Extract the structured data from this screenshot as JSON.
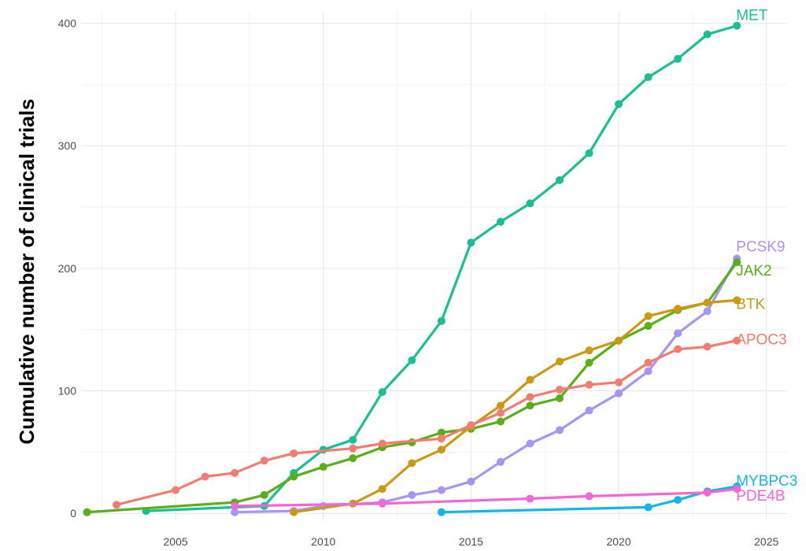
{
  "chart_data": {
    "type": "line",
    "title": "",
    "xlabel": "",
    "ylabel": "Cumulative number of clinical trials",
    "xlim": [
      2001.8,
      2025.7
    ],
    "ylim": [
      -5,
      410
    ],
    "x_ticks": [
      2005,
      2010,
      2015,
      2020,
      2025
    ],
    "y_ticks": [
      0,
      100,
      200,
      300,
      400
    ],
    "grid": true,
    "legend": "direct labels at line ends",
    "series": [
      {
        "name": "MET",
        "color": "#1ABF94",
        "x": [
          2004,
          2008,
          2009,
          2010,
          2011,
          2012,
          2013,
          2014,
          2015,
          2016,
          2017,
          2018,
          2019,
          2020,
          2021,
          2022,
          2023,
          2024
        ],
        "y": [
          2,
          6,
          33,
          52,
          60,
          99,
          125,
          157,
          221,
          238,
          253,
          272,
          294,
          334,
          356,
          371,
          391,
          398
        ]
      },
      {
        "name": "PCSK9",
        "color": "#A894F5",
        "x": [
          2007,
          2009,
          2010,
          2012,
          2013,
          2014,
          2015,
          2016,
          2017,
          2018,
          2019,
          2020,
          2021,
          2022,
          2023,
          2024
        ],
        "y": [
          1,
          2,
          6,
          9,
          15,
          19,
          26,
          42,
          57,
          68,
          84,
          98,
          116,
          147,
          165,
          208
        ]
      },
      {
        "name": "JAK2",
        "color": "#5AAE1A",
        "x": [
          2002,
          2007,
          2008,
          2009,
          2010,
          2011,
          2012,
          2013,
          2014,
          2015,
          2016,
          2017,
          2018,
          2019,
          2020,
          2021,
          2022,
          2023,
          2024
        ],
        "y": [
          1,
          9,
          15,
          30,
          38,
          45,
          54,
          58,
          66,
          69,
          75,
          88,
          94,
          123,
          141,
          153,
          166,
          172,
          205
        ]
      },
      {
        "name": "BTK",
        "color": "#C99A12",
        "x": [
          2009,
          2011,
          2012,
          2013,
          2014,
          2015,
          2016,
          2017,
          2018,
          2019,
          2020,
          2021,
          2022,
          2023,
          2024
        ],
        "y": [
          1,
          8,
          20,
          41,
          52,
          71,
          88,
          109,
          124,
          133,
          141,
          161,
          167,
          172,
          174
        ]
      },
      {
        "name": "APOC3",
        "color": "#F27B72",
        "x": [
          2003,
          2005,
          2006,
          2007,
          2008,
          2009,
          2011,
          2012,
          2014,
          2015,
          2016,
          2017,
          2018,
          2019,
          2020,
          2021,
          2022,
          2023,
          2024
        ],
        "y": [
          7,
          19,
          30,
          33,
          43,
          49,
          53,
          57,
          61,
          72,
          82,
          95,
          101,
          105,
          107,
          123,
          134,
          136,
          141
        ]
      },
      {
        "name": "MYBPC3",
        "color": "#14B5E8",
        "x": [
          2014,
          2021,
          2022,
          2023,
          2024
        ],
        "y": [
          1,
          5,
          11,
          18,
          22
        ]
      },
      {
        "name": "PDE4B",
        "color": "#F266D6",
        "x": [
          2007,
          2012,
          2017,
          2019,
          2023,
          2024
        ],
        "y": [
          6,
          8,
          12,
          14,
          17,
          20
        ]
      }
    ]
  }
}
